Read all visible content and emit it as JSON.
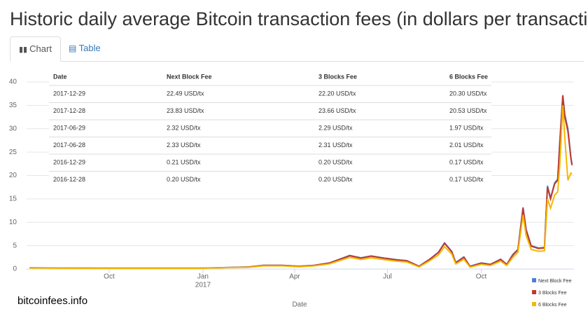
{
  "title": "Historic daily average Bitcoin transaction fees (in dollars per transaction)",
  "tabs": [
    "Chart",
    "Table"
  ],
  "watermark": "bitcoinfees.info",
  "table": {
    "columns": [
      "Date",
      "Next Block Fee",
      "3 Blocks Fee",
      "6 Blocks Fee"
    ],
    "rows": [
      [
        "2017-12-29",
        "22.49 USD/tx",
        "22.20 USD/tx",
        "20.30 USD/tx"
      ],
      [
        "2017-12-28",
        "23.83 USD/tx",
        "23.66 USD/tx",
        "20.53 USD/tx"
      ],
      [
        "2017-06-29",
        "2.32 USD/tx",
        "2.29 USD/tx",
        "1.97 USD/tx"
      ],
      [
        "2017-06-28",
        "2.33 USD/tx",
        "2.31 USD/tx",
        "2.01 USD/tx"
      ],
      [
        "2016-12-29",
        "0.21 USD/tx",
        "0.20 USD/tx",
        "0.17 USD/tx"
      ],
      [
        "2016-12-28",
        "0.20 USD/tx",
        "0.20 USD/tx",
        "0.17 USD/tx"
      ]
    ]
  },
  "chart_data": {
    "type": "line",
    "x_label": "Date",
    "x": [
      "2016-07-15",
      "2016-08-15",
      "2016-09-15",
      "2016-10-15",
      "2016-11-15",
      "2016-12-28",
      "2016-12-29",
      "2017-01-20",
      "2017-02-15",
      "2017-03-01",
      "2017-03-20",
      "2017-04-05",
      "2017-04-20",
      "2017-05-05",
      "2017-05-15",
      "2017-05-25",
      "2017-06-05",
      "2017-06-15",
      "2017-06-28",
      "2017-06-29",
      "2017-07-10",
      "2017-07-20",
      "2017-08-01",
      "2017-08-12",
      "2017-08-20",
      "2017-08-26",
      "2017-09-02",
      "2017-09-06",
      "2017-09-14",
      "2017-09-20",
      "2017-10-01",
      "2017-10-10",
      "2017-10-20",
      "2017-10-26",
      "2017-11-01",
      "2017-11-06",
      "2017-11-11",
      "2017-11-14",
      "2017-11-19",
      "2017-11-26",
      "2017-12-02",
      "2017-12-05",
      "2017-12-08",
      "2017-12-12",
      "2017-12-15",
      "2017-12-17",
      "2017-12-20",
      "2017-12-22",
      "2017-12-25",
      "2017-12-28",
      "2017-12-29"
    ],
    "series": [
      {
        "name": "Next Block Fee",
        "color": "#4a7fd6",
        "values": [
          0.25,
          0.22,
          0.2,
          0.2,
          0.2,
          0.2,
          0.21,
          0.3,
          0.45,
          0.8,
          0.8,
          0.6,
          0.8,
          1.3,
          2.1,
          2.9,
          2.4,
          2.8,
          2.33,
          2.32,
          2.0,
          1.8,
          0.6,
          2.2,
          3.6,
          5.6,
          3.8,
          1.4,
          2.6,
          0.6,
          1.3,
          1.0,
          2.1,
          1.0,
          3.1,
          4.2,
          13.2,
          8.5,
          5.0,
          4.5,
          4.6,
          17.8,
          15.2,
          18.4,
          19.2,
          27.0,
          37.2,
          33.0,
          30.0,
          23.83,
          22.49
        ]
      },
      {
        "name": "3 Blocks Fee",
        "color": "#c0392b",
        "values": [
          0.24,
          0.21,
          0.2,
          0.2,
          0.2,
          0.2,
          0.2,
          0.29,
          0.44,
          0.78,
          0.78,
          0.58,
          0.78,
          1.27,
          2.05,
          2.85,
          2.35,
          2.75,
          2.31,
          2.29,
          1.95,
          1.75,
          0.58,
          2.15,
          3.5,
          5.5,
          3.7,
          1.35,
          2.5,
          0.55,
          1.25,
          0.95,
          2.05,
          0.95,
          3.0,
          4.1,
          13.0,
          8.3,
          4.9,
          4.4,
          4.5,
          17.5,
          15.0,
          18.2,
          19.0,
          26.5,
          37.0,
          32.5,
          29.5,
          23.66,
          22.2
        ]
      },
      {
        "name": "6 Blocks Fee",
        "color": "#f5b800",
        "values": [
          0.21,
          0.19,
          0.17,
          0.17,
          0.17,
          0.17,
          0.17,
          0.25,
          0.38,
          0.68,
          0.68,
          0.5,
          0.68,
          1.1,
          1.8,
          2.5,
          2.05,
          2.4,
          2.01,
          1.97,
          1.7,
          1.5,
          0.45,
          1.85,
          3.0,
          4.8,
          3.2,
          1.1,
          2.1,
          0.4,
          1.0,
          0.75,
          1.7,
          0.75,
          2.5,
          3.6,
          11.5,
          7.2,
          4.2,
          3.8,
          3.9,
          15.0,
          13.0,
          15.8,
          16.5,
          22.0,
          35.0,
          28.0,
          19.0,
          20.53,
          20.3
        ]
      }
    ],
    "xlim": [
      "2016-07-12",
      "2017-12-31"
    ],
    "xticks": [
      {
        "value": "2016-10-01",
        "label": "Oct"
      },
      {
        "value": "2017-01-01",
        "label": "Jan",
        "sublabel": "2017"
      },
      {
        "value": "2017-04-01",
        "label": "Apr"
      },
      {
        "value": "2017-07-01",
        "label": "Jul"
      },
      {
        "value": "2017-10-01",
        "label": "Oct"
      }
    ],
    "ylim": [
      0,
      40
    ],
    "yticks": [
      0,
      5,
      10,
      15,
      20,
      25,
      30,
      35,
      40
    ],
    "grid": true,
    "legend": "bottom-right"
  }
}
